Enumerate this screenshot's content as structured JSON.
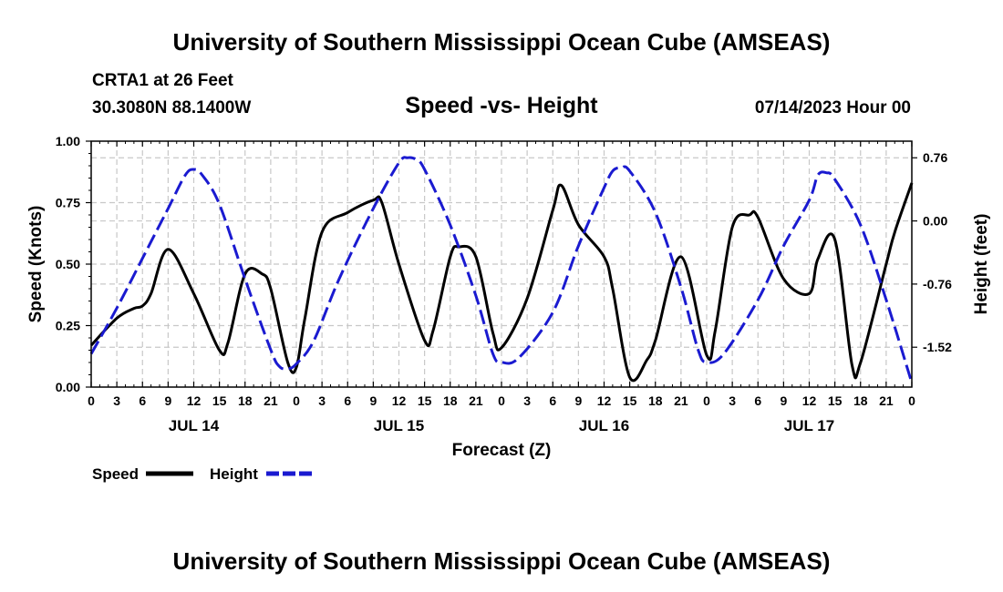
{
  "header": {
    "title": "University of Southern Mississippi Ocean Cube (AMSEAS)",
    "station": "CRTA1 at 26 Feet",
    "coords": "30.3080N  88.1400W",
    "plot_title": "Speed -vs- Height",
    "date": "07/14/2023 Hour 00"
  },
  "footer": {
    "title": "University of Southern Mississippi Ocean Cube (AMSEAS)"
  },
  "legend": {
    "speed_label": "Speed",
    "height_label": "Height"
  },
  "colors": {
    "speed": "#000000",
    "height": "#1a1ad0",
    "grid": "#c8c8c8"
  },
  "chart_data": {
    "type": "line",
    "title": "Speed -vs- Height",
    "xlabel": "Forecast (Z)",
    "ylabel": "Speed (Knots)",
    "y2label": "Height (feet)",
    "xlim": [
      0,
      96
    ],
    "ylim": [
      0,
      1
    ],
    "y2lim": [
      -2.0,
      0.96
    ],
    "x_ticks": [
      0,
      3,
      6,
      9,
      12,
      15,
      18,
      21,
      24,
      27,
      30,
      33,
      36,
      39,
      42,
      45,
      48,
      51,
      54,
      57,
      60,
      63,
      66,
      69,
      72,
      75,
      78,
      81,
      84,
      87,
      90,
      93,
      96
    ],
    "x_tick_labels": [
      "0",
      "3",
      "6",
      "9",
      "12",
      "15",
      "18",
      "21",
      "0",
      "3",
      "6",
      "9",
      "12",
      "15",
      "18",
      "21",
      "0",
      "3",
      "6",
      "9",
      "12",
      "15",
      "18",
      "21",
      "0",
      "3",
      "6",
      "9",
      "12",
      "15",
      "18",
      "21",
      "0"
    ],
    "day_labels": [
      {
        "x": 12,
        "label": "JUL 14"
      },
      {
        "x": 36,
        "label": "JUL 15"
      },
      {
        "x": 60,
        "label": "JUL 16"
      },
      {
        "x": 84,
        "label": "JUL 17"
      }
    ],
    "y_ticks": [
      0,
      0.25,
      0.5,
      0.75,
      1.0
    ],
    "y_tick_labels": [
      "0.00",
      "0.25",
      "0.50",
      "0.75",
      "1.00"
    ],
    "y2_ticks": [
      0.76,
      0.0,
      -0.76,
      -1.52
    ],
    "y2_tick_labels": [
      "0.76",
      "0.00",
      "-0.76",
      "-1.52"
    ],
    "grid": true,
    "series": [
      {
        "name": "Speed",
        "axis": "left",
        "style": "solid",
        "x": [
          0,
          3,
          5,
          6,
          7,
          9,
          12,
          15,
          16,
          18,
          20,
          21,
          23,
          24,
          25,
          27,
          30,
          33,
          34,
          36,
          39,
          40,
          42,
          43,
          45,
          47,
          48,
          51,
          54,
          55,
          57,
          60,
          61,
          63,
          65,
          66,
          69,
          72,
          73,
          75,
          77,
          78,
          81,
          84,
          85,
          87,
          89,
          90,
          93,
          94,
          96
        ],
        "values": [
          0.17,
          0.28,
          0.32,
          0.33,
          0.38,
          0.56,
          0.38,
          0.15,
          0.18,
          0.46,
          0.46,
          0.4,
          0.1,
          0.08,
          0.28,
          0.63,
          0.71,
          0.76,
          0.75,
          0.5,
          0.19,
          0.23,
          0.53,
          0.57,
          0.53,
          0.22,
          0.16,
          0.36,
          0.72,
          0.82,
          0.66,
          0.53,
          0.4,
          0.04,
          0.11,
          0.19,
          0.53,
          0.13,
          0.23,
          0.65,
          0.7,
          0.69,
          0.44,
          0.38,
          0.52,
          0.6,
          0.09,
          0.1,
          0.5,
          0.63,
          0.83
        ]
      },
      {
        "name": "Height",
        "axis": "right",
        "style": "dashed",
        "x": [
          0,
          3,
          6,
          9,
          11,
          12,
          13,
          15,
          18,
          21,
          22,
          23,
          24,
          26,
          29,
          33,
          36,
          37,
          38,
          39,
          42,
          45,
          47,
          48,
          50,
          54,
          57,
          60,
          61,
          62,
          63,
          66,
          69,
          71,
          72,
          74,
          78,
          81,
          84,
          85,
          86,
          87,
          90,
          93,
          96
        ],
        "values": [
          -1.6,
          -1.05,
          -0.45,
          0.15,
          0.55,
          0.62,
          0.55,
          0.2,
          -0.7,
          -1.55,
          -1.75,
          -1.78,
          -1.72,
          -1.45,
          -0.7,
          0.15,
          0.7,
          0.76,
          0.74,
          0.62,
          -0.05,
          -0.9,
          -1.6,
          -1.7,
          -1.65,
          -1.1,
          -0.3,
          0.4,
          0.6,
          0.64,
          0.6,
          0.1,
          -0.8,
          -1.55,
          -1.7,
          -1.6,
          -0.95,
          -0.3,
          0.25,
          0.55,
          0.58,
          0.5,
          -0.05,
          -0.95,
          -1.95
        ]
      }
    ]
  }
}
